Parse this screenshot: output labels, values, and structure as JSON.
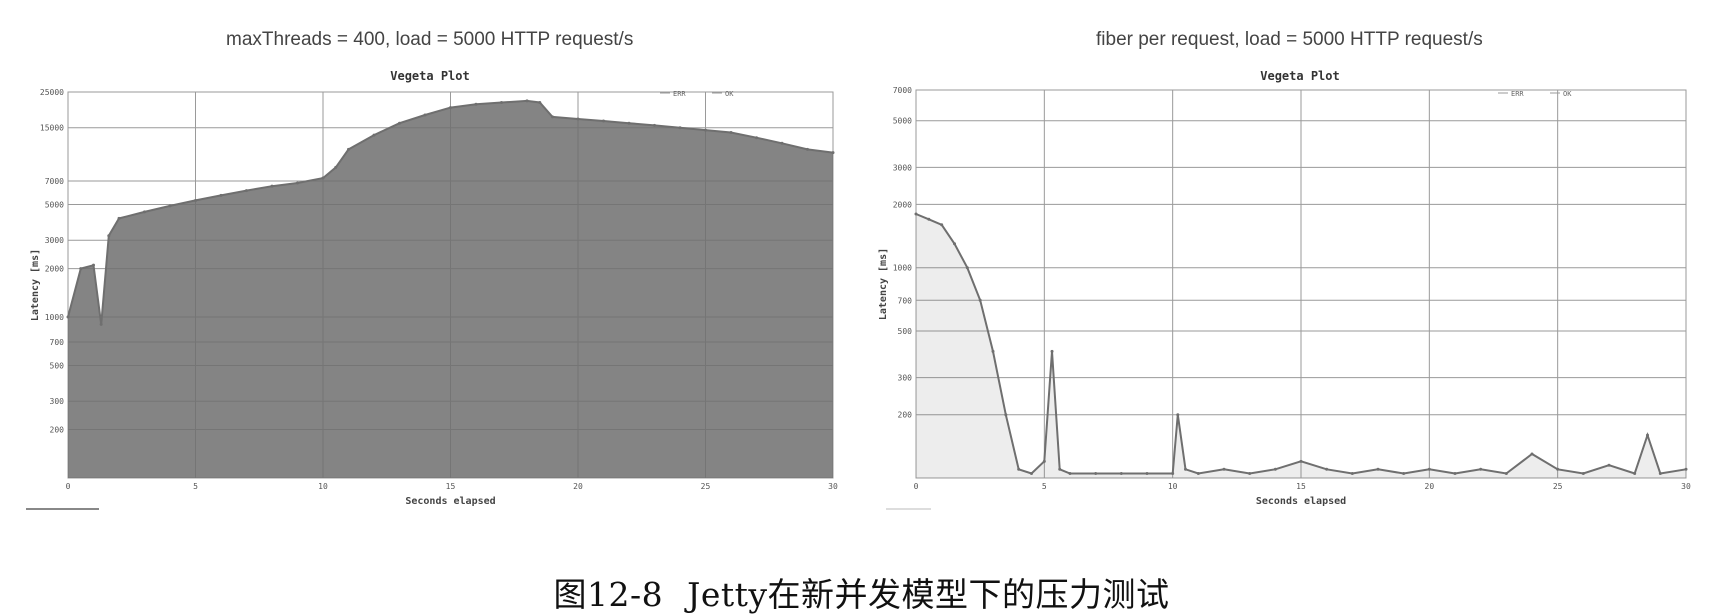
{
  "chart_data": [
    {
      "type": "line",
      "panel_title": "maxThreads = 400, load = 5000 HTTP request/s",
      "title": "Vegeta Plot",
      "xlabel": "Seconds elapsed",
      "ylabel": "Latency [ms]",
      "x_ticks": [
        "0",
        "5",
        "10",
        "15",
        "20",
        "25",
        "30"
      ],
      "y_ticks": [
        "200",
        "300",
        "500",
        "700",
        "1000",
        "2000",
        "3000",
        "5000",
        "7000",
        "15000",
        "25000"
      ],
      "xlim": [
        0,
        30
      ],
      "ylim": [
        100,
        25000
      ],
      "y_scale": "log",
      "legend": [
        "ERR",
        "OK"
      ],
      "legend_placement": "top-right",
      "grid": true,
      "color": "#6f6f6f",
      "series": [
        {
          "name": "OK",
          "x": [
            0,
            0.5,
            1,
            1.3,
            1.6,
            2,
            3,
            4,
            5,
            6,
            7,
            8,
            9,
            10,
            10.5,
            11,
            12,
            13,
            14,
            15,
            16,
            17,
            18,
            18.5,
            19,
            20,
            21,
            22,
            23,
            24,
            25,
            26,
            27,
            28,
            29,
            30
          ],
          "y": [
            1000,
            2000,
            2100,
            900,
            3200,
            4100,
            4500,
            4900,
            5300,
            5700,
            6100,
            6500,
            6800,
            7300,
            8500,
            11000,
            13500,
            16000,
            18000,
            20000,
            21000,
            21500,
            22000,
            21500,
            17500,
            17000,
            16500,
            16000,
            15500,
            15000,
            14500,
            14000,
            13000,
            12000,
            11000,
            10500
          ]
        }
      ]
    },
    {
      "type": "line",
      "panel_title": "fiber per request,  load = 5000 HTTP request/s",
      "title": "Vegeta Plot",
      "xlabel": "Seconds elapsed",
      "ylabel": "Latency [ms]",
      "x_ticks": [
        "0",
        "5",
        "10",
        "15",
        "20",
        "25",
        "30"
      ],
      "y_ticks": [
        "200",
        "300",
        "500",
        "700",
        "1000",
        "2000",
        "3000",
        "5000",
        "7000"
      ],
      "xlim": [
        0,
        30
      ],
      "ylim": [
        100,
        7000
      ],
      "y_scale": "log",
      "legend": [
        "ERR",
        "OK"
      ],
      "legend_placement": "top-right",
      "grid": true,
      "color": "#6f6f6f",
      "series": [
        {
          "name": "OK",
          "x": [
            0,
            0.5,
            1,
            1.5,
            2,
            2.5,
            3,
            3.5,
            4,
            4.5,
            5,
            5.3,
            5.6,
            6,
            7,
            8,
            9,
            10,
            10.2,
            10.5,
            11,
            12,
            13,
            14,
            15,
            16,
            17,
            18,
            19,
            20,
            21,
            22,
            23,
            24,
            25,
            26,
            27,
            28,
            28.5,
            29,
            30
          ],
          "y": [
            1800,
            1700,
            1600,
            1300,
            1000,
            700,
            400,
            200,
            110,
            105,
            120,
            400,
            110,
            105,
            105,
            105,
            105,
            105,
            200,
            110,
            105,
            110,
            105,
            110,
            120,
            110,
            105,
            110,
            105,
            110,
            105,
            110,
            105,
            130,
            110,
            105,
            115,
            105,
            160,
            105,
            110
          ]
        }
      ]
    }
  ],
  "figure_caption": {
    "number": "图12-8",
    "text": "Jetty在新并发模型下的压力测试"
  }
}
